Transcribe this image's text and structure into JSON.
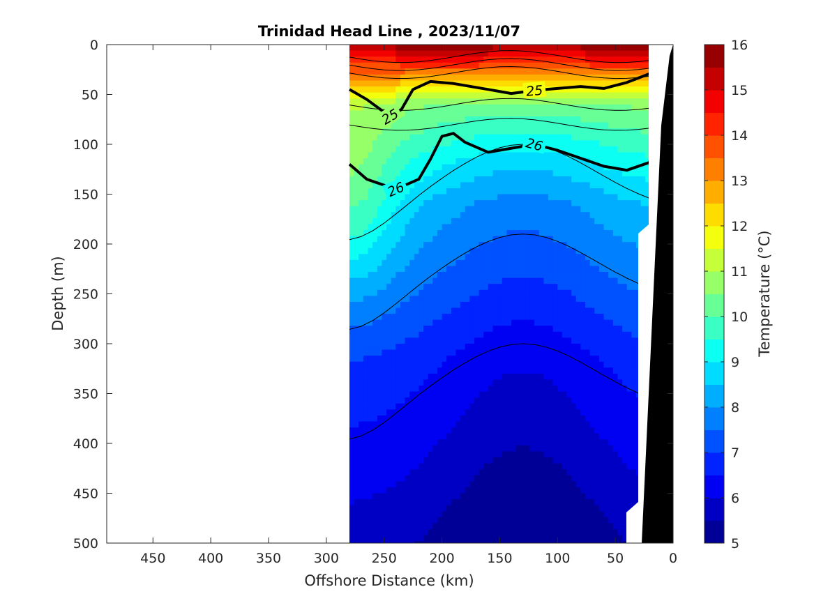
{
  "chart_data": {
    "type": "contour",
    "title": "Trinidad Head Line , 2023/11/07",
    "xlabel": "Offshore Distance (km)",
    "ylabel": "Depth (m)",
    "xlim": [
      490,
      0
    ],
    "ylim": [
      500,
      0
    ],
    "x_ticks": [
      "450",
      "400",
      "350",
      "300",
      "250",
      "200",
      "150",
      "100",
      "50",
      "0"
    ],
    "y_ticks": [
      "0",
      "50",
      "100",
      "150",
      "200",
      "250",
      "300",
      "350",
      "400",
      "450",
      "500"
    ],
    "colorbar": {
      "label": "Temperature (°C)",
      "min": 5,
      "max": 16,
      "ticks": [
        "16",
        "15",
        "14",
        "13",
        "12",
        "11",
        "10",
        "9",
        "8",
        "7",
        "6",
        "5"
      ],
      "colormap": "jet"
    },
    "data_extent_km": [
      20,
      280
    ],
    "temperature_bands": [
      {
        "depth_m": [
          0,
          20
        ],
        "temp_c": [
          15,
          16
        ]
      },
      {
        "depth_m": [
          20,
          40
        ],
        "temp_c": [
          13,
          15
        ]
      },
      {
        "depth_m": [
          40,
          60
        ],
        "temp_c": [
          11,
          13
        ]
      },
      {
        "depth_m": [
          60,
          150
        ],
        "temp_c": [
          9,
          11
        ]
      },
      {
        "depth_m": [
          150,
          300
        ],
        "temp_c": [
          7,
          9
        ]
      },
      {
        "depth_m": [
          300,
          500
        ],
        "temp_c": [
          5,
          7
        ]
      }
    ],
    "density_contours": [
      {
        "label": "25",
        "points": [
          [
            280,
            45
          ],
          [
            265,
            55
          ],
          [
            245,
            72
          ],
          [
            235,
            65
          ],
          [
            225,
            45
          ],
          [
            210,
            37
          ],
          [
            190,
            39
          ],
          [
            160,
            45
          ],
          [
            140,
            49
          ],
          [
            120,
            46
          ],
          [
            100,
            44
          ],
          [
            80,
            42
          ],
          [
            60,
            44
          ],
          [
            40,
            38
          ],
          [
            20,
            29
          ]
        ]
      },
      {
        "label": "26",
        "points": [
          [
            280,
            120
          ],
          [
            265,
            135
          ],
          [
            240,
            145
          ],
          [
            220,
            135
          ],
          [
            210,
            115
          ],
          [
            200,
            92
          ],
          [
            190,
            89
          ],
          [
            180,
            98
          ],
          [
            160,
            108
          ],
          [
            120,
            100
          ],
          [
            100,
            106
          ],
          [
            80,
            114
          ],
          [
            60,
            122
          ],
          [
            40,
            126
          ],
          [
            20,
            118
          ]
        ]
      }
    ],
    "seafloor": {
      "color": "#000000",
      "description_km_depth": [
        [
          20,
          0
        ],
        [
          20,
          500
        ]
      ]
    }
  }
}
